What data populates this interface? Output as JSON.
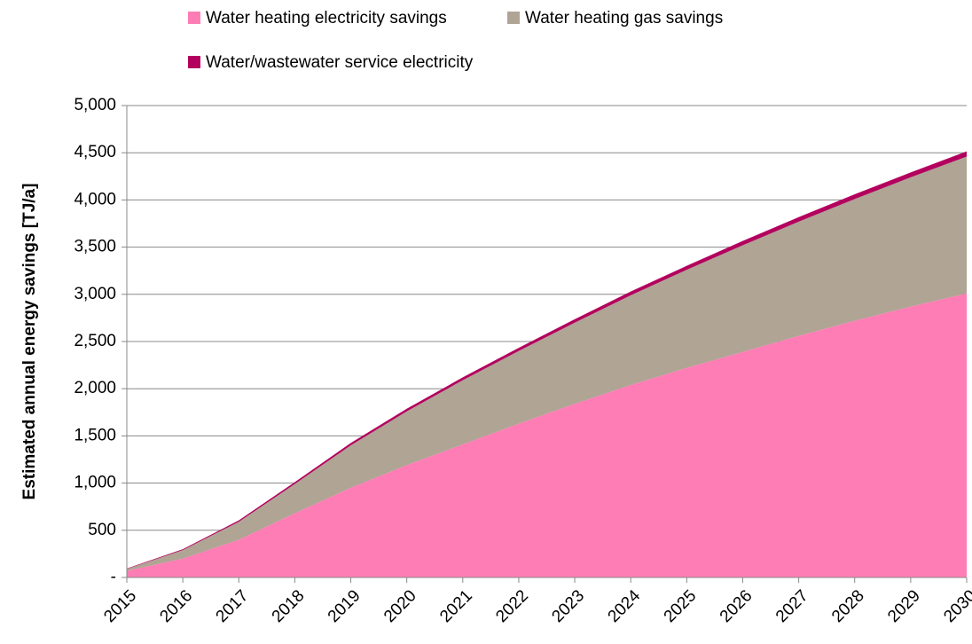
{
  "chart_data": {
    "type": "stacked_area",
    "y_label": "Estimated annual energy savings [TJ/a]",
    "categories": [
      "2015",
      "2016",
      "2017",
      "2018",
      "2019",
      "2020",
      "2021",
      "2022",
      "2023",
      "2024",
      "2025",
      "2026",
      "2027",
      "2028",
      "2029",
      "2030"
    ],
    "series": [
      {
        "name": "Water heating electricity savings",
        "color": "#ff7db5",
        "values": [
          70,
          200,
          400,
          680,
          950,
          1190,
          1410,
          1630,
          1840,
          2040,
          2220,
          2390,
          2560,
          2720,
          2870,
          3010
        ]
      },
      {
        "name": "Water heating gas savings",
        "color": "#b0a494",
        "values": [
          20,
          90,
          190,
          310,
          450,
          570,
          680,
          770,
          860,
          950,
          1040,
          1130,
          1210,
          1290,
          1370,
          1450
        ]
      },
      {
        "name": "Water/wastewater service electricity",
        "color": "#b3005e",
        "values": [
          5,
          10,
          15,
          20,
          25,
          28,
          30,
          33,
          36,
          40,
          42,
          45,
          48,
          50,
          52,
          55
        ]
      }
    ],
    "ylim": [
      0,
      5000
    ],
    "yticks": [
      {
        "value": 0,
        "label": "-"
      },
      {
        "value": 500,
        "label": "500"
      },
      {
        "value": 1000,
        "label": "1,000"
      },
      {
        "value": 1500,
        "label": "1,500"
      },
      {
        "value": 2000,
        "label": "2,000"
      },
      {
        "value": 2500,
        "label": "2,500"
      },
      {
        "value": 3000,
        "label": "3,000"
      },
      {
        "value": 3500,
        "label": "3,500"
      },
      {
        "value": 4000,
        "label": "4,000"
      },
      {
        "value": 4500,
        "label": "4,500"
      },
      {
        "value": 5000,
        "label": "5,000"
      }
    ],
    "grid": true
  }
}
